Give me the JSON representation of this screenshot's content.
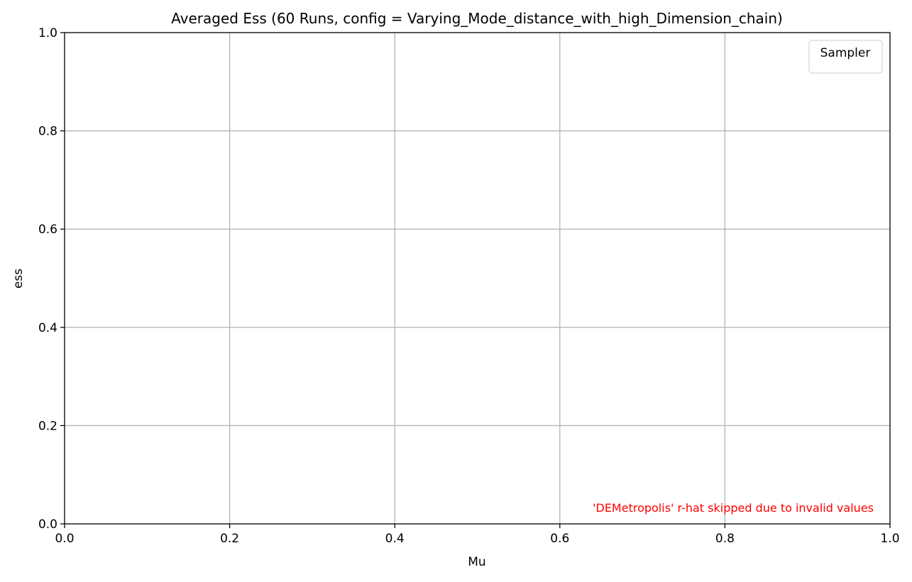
{
  "chart_data": {
    "type": "line",
    "title": "Averaged Ess (60 Runs, config = Varying_Mode_distance_with_high_Dimension_chain)",
    "xlabel": "Mu",
    "ylabel": "ess",
    "xlim": [
      0.0,
      1.0
    ],
    "ylim": [
      0.0,
      1.0
    ],
    "x_ticks": [
      "0.0",
      "0.2",
      "0.4",
      "0.6",
      "0.8",
      "1.0"
    ],
    "y_ticks": [
      "0.0",
      "0.2",
      "0.4",
      "0.6",
      "0.8",
      "1.0"
    ],
    "grid": true,
    "legend": {
      "title": "Sampler",
      "position": "top-right",
      "entries": []
    },
    "series": [],
    "annotation": {
      "text": "'DEMetropolis' r-hat skipped due to invalid values",
      "color": "#ff0000",
      "position": "bottom-right"
    }
  }
}
